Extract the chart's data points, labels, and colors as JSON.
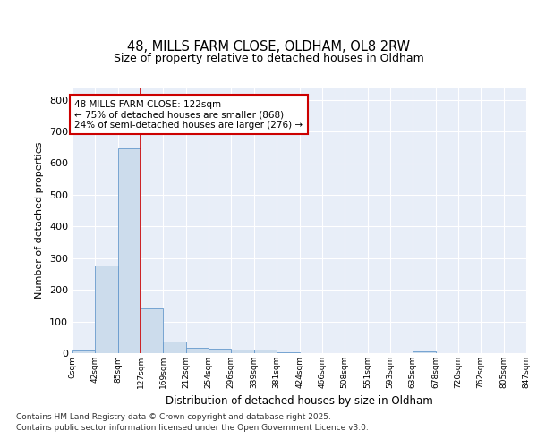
{
  "title_line1": "48, MILLS FARM CLOSE, OLDHAM, OL8 2RW",
  "title_line2": "Size of property relative to detached houses in Oldham",
  "xlabel": "Distribution of detached houses by size in Oldham",
  "ylabel": "Number of detached properties",
  "bar_color": "#ccdcec",
  "bar_edge_color": "#6699cc",
  "background_color": "#e8eef8",
  "annotation_text": "48 MILLS FARM CLOSE: 122sqm\n← 75% of detached houses are smaller (868)\n24% of semi-detached houses are larger (276) →",
  "annotation_box_color": "#ffffff",
  "annotation_box_edge": "#cc0000",
  "vline_color": "#cc0000",
  "vline_x": 127,
  "footer_text": "Contains HM Land Registry data © Crown copyright and database right 2025.\nContains public sector information licensed under the Open Government Licence v3.0.",
  "bin_edges": [
    0,
    42,
    85,
    127,
    169,
    212,
    254,
    296,
    339,
    381,
    424,
    466,
    508,
    551,
    593,
    635,
    678,
    720,
    762,
    805,
    847
  ],
  "bin_labels": [
    "0sqm",
    "42sqm",
    "85sqm",
    "127sqm",
    "169sqm",
    "212sqm",
    "254sqm",
    "296sqm",
    "339sqm",
    "381sqm",
    "424sqm",
    "466sqm",
    "508sqm",
    "551sqm",
    "593sqm",
    "635sqm",
    "678sqm",
    "720sqm",
    "762sqm",
    "805sqm",
    "847sqm"
  ],
  "bar_heights": [
    8,
    278,
    648,
    142,
    38,
    18,
    13,
    12,
    10,
    4,
    0,
    0,
    0,
    0,
    0,
    5,
    0,
    0,
    0,
    0
  ],
  "ylim": [
    0,
    840
  ],
  "yticks": [
    0,
    100,
    200,
    300,
    400,
    500,
    600,
    700,
    800
  ]
}
